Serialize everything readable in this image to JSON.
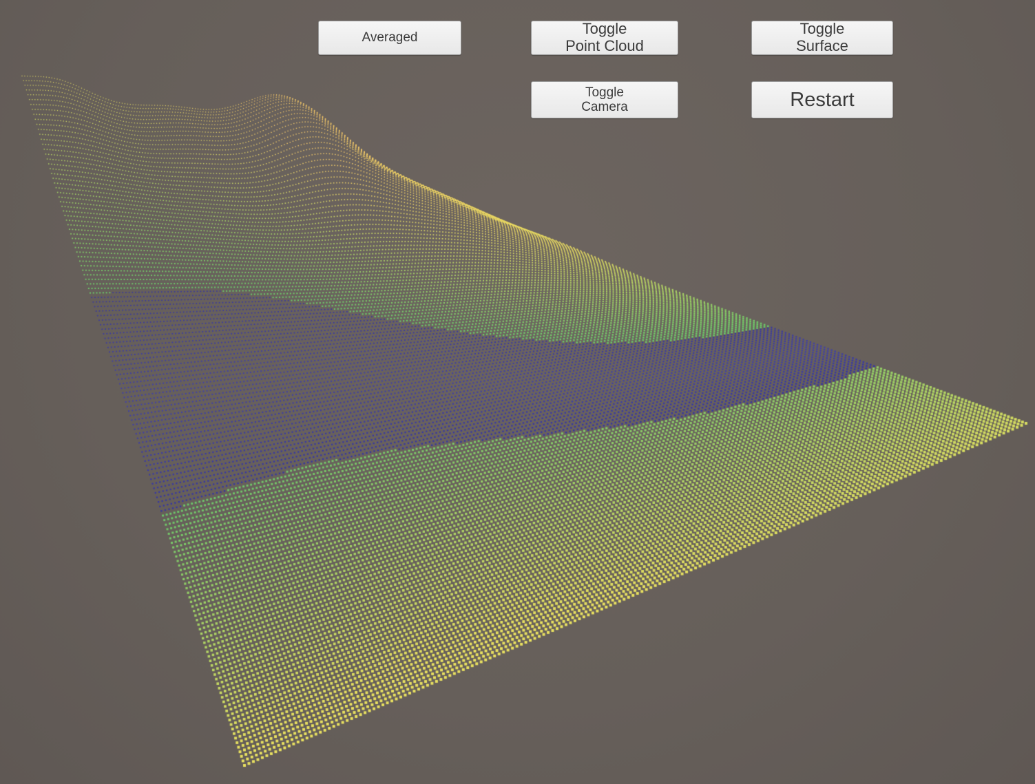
{
  "window": {
    "background_color": "#69615d"
  },
  "controls": {
    "averaged_label": "Averaged",
    "toggle_point_cloud_label": "Toggle\nPoint Cloud",
    "toggle_surface_label": "Toggle\nSurface",
    "toggle_camera_label": "Toggle\nCamera",
    "restart_label": "Restart"
  },
  "point_cloud": {
    "colors": {
      "low": "#2a2a9e",
      "water": "#4a4a9a",
      "mid": "#6ac46a",
      "high": "#f2c46a",
      "shore": "#e8e060"
    }
  }
}
